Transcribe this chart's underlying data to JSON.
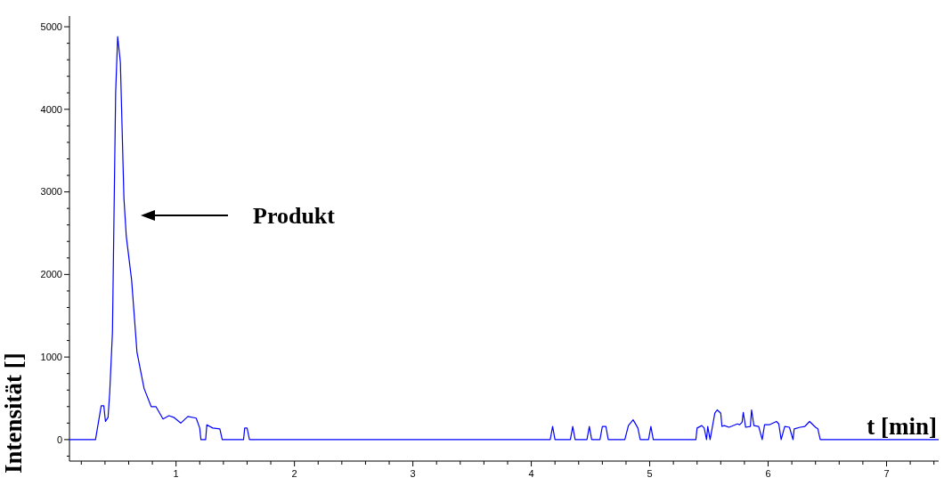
{
  "chart_data": {
    "type": "line",
    "xlabel": "t [min]",
    "ylabel": "Intensität []",
    "xlim": [
      0.1,
      7.44
    ],
    "ylim": [
      -260,
      5130
    ],
    "xticks": [
      {
        "value": 0.2,
        "label": null
      },
      {
        "value": 0.4,
        "label": null
      },
      {
        "value": 0.6,
        "label": null
      },
      {
        "value": 0.8,
        "label": null
      },
      1,
      {
        "value": 1.2,
        "label": null
      },
      {
        "value": 1.4,
        "label": null
      },
      {
        "value": 1.6,
        "label": null
      },
      {
        "value": 1.8,
        "label": null
      },
      2,
      {
        "value": 2.2,
        "label": null
      },
      {
        "value": 2.4,
        "label": null
      },
      {
        "value": 2.6,
        "label": null
      },
      {
        "value": 2.8,
        "label": null
      },
      3,
      {
        "value": 3.2,
        "label": null
      },
      {
        "value": 3.4,
        "label": null
      },
      {
        "value": 3.6,
        "label": null
      },
      {
        "value": 3.8,
        "label": null
      },
      4,
      {
        "value": 4.2,
        "label": null
      },
      {
        "value": 4.4,
        "label": null
      },
      {
        "value": 4.6,
        "label": null
      },
      {
        "value": 4.8,
        "label": null
      },
      5,
      {
        "value": 5.2,
        "label": null
      },
      {
        "value": 5.4,
        "label": null
      },
      {
        "value": 5.6,
        "label": null
      },
      {
        "value": 5.8,
        "label": null
      },
      6,
      {
        "value": 6.2,
        "label": null
      },
      {
        "value": 6.4,
        "label": null
      },
      {
        "value": 6.6,
        "label": null
      },
      {
        "value": 6.8,
        "label": null
      },
      7,
      {
        "value": 7.2,
        "label": null
      },
      {
        "value": 7.4,
        "label": null
      }
    ],
    "yticks": [
      {
        "value": -200,
        "label": null
      },
      0,
      {
        "value": 200,
        "label": null
      },
      {
        "value": 400,
        "label": null
      },
      {
        "value": 600,
        "label": null
      },
      {
        "value": 800,
        "label": null
      },
      1000,
      {
        "value": 1200,
        "label": null
      },
      {
        "value": 1400,
        "label": null
      },
      {
        "value": 1600,
        "label": null
      },
      {
        "value": 1800,
        "label": null
      },
      2000,
      {
        "value": 2200,
        "label": null
      },
      {
        "value": 2400,
        "label": null
      },
      {
        "value": 2600,
        "label": null
      },
      {
        "value": 2800,
        "label": null
      },
      3000,
      {
        "value": 3200,
        "label": null
      },
      {
        "value": 3400,
        "label": null
      },
      {
        "value": 3600,
        "label": null
      },
      {
        "value": 3800,
        "label": null
      },
      4000,
      {
        "value": 4200,
        "label": null
      },
      {
        "value": 4400,
        "label": null
      },
      {
        "value": 4600,
        "label": null
      },
      {
        "value": 4800,
        "label": null
      },
      5000
    ],
    "grid": false,
    "marker": "none",
    "line_style": "solid",
    "annotations": [
      "Produkt"
    ],
    "series": [
      {
        "color": "#0000ff",
        "x": [
          0.1,
          0.32,
          0.368,
          0.39,
          0.404,
          0.426,
          0.44,
          0.463,
          0.49,
          0.507,
          0.53,
          0.56,
          0.58,
          0.625,
          0.67,
          0.73,
          0.79,
          0.83,
          0.89,
          0.94,
          0.98,
          1.04,
          1.1,
          1.17,
          1.2,
          1.21,
          1.25,
          1.26,
          1.31,
          1.37,
          1.39,
          1.57,
          1.58,
          1.6,
          1.62,
          4.16,
          4.18,
          4.2,
          4.33,
          4.35,
          4.37,
          4.47,
          4.49,
          4.51,
          4.58,
          4.6,
          4.63,
          4.65,
          4.79,
          4.82,
          4.86,
          4.9,
          4.92,
          4.99,
          5.01,
          5.03,
          5.39,
          5.4,
          5.44,
          5.46,
          5.48,
          5.49,
          5.51,
          5.55,
          5.57,
          5.6,
          5.61,
          5.63,
          5.67,
          5.74,
          5.76,
          5.78,
          5.79,
          5.81,
          5.85,
          5.86,
          5.88,
          5.92,
          5.95,
          5.97,
          6.01,
          6.07,
          6.09,
          6.11,
          6.14,
          6.18,
          6.21,
          6.22,
          6.27,
          6.31,
          6.35,
          6.4,
          6.42,
          6.44,
          7.44
        ],
        "values": [
          0,
          0,
          410,
          410,
          220,
          270,
          570,
          1300,
          4200,
          4880,
          4570,
          2920,
          2460,
          1930,
          1060,
          620,
          400,
          400,
          250,
          290,
          270,
          200,
          280,
          260,
          140,
          0,
          0,
          180,
          140,
          130,
          0,
          0,
          140,
          140,
          0,
          0,
          160,
          0,
          0,
          160,
          0,
          0,
          160,
          0,
          0,
          160,
          160,
          0,
          0,
          170,
          240,
          140,
          0,
          0,
          160,
          0,
          0,
          140,
          170,
          140,
          0,
          160,
          0,
          320,
          360,
          320,
          160,
          170,
          150,
          190,
          180,
          210,
          330,
          150,
          160,
          360,
          170,
          160,
          0,
          180,
          180,
          220,
          190,
          0,
          160,
          150,
          0,
          130,
          150,
          160,
          220,
          150,
          130,
          0,
          0
        ]
      }
    ]
  }
}
